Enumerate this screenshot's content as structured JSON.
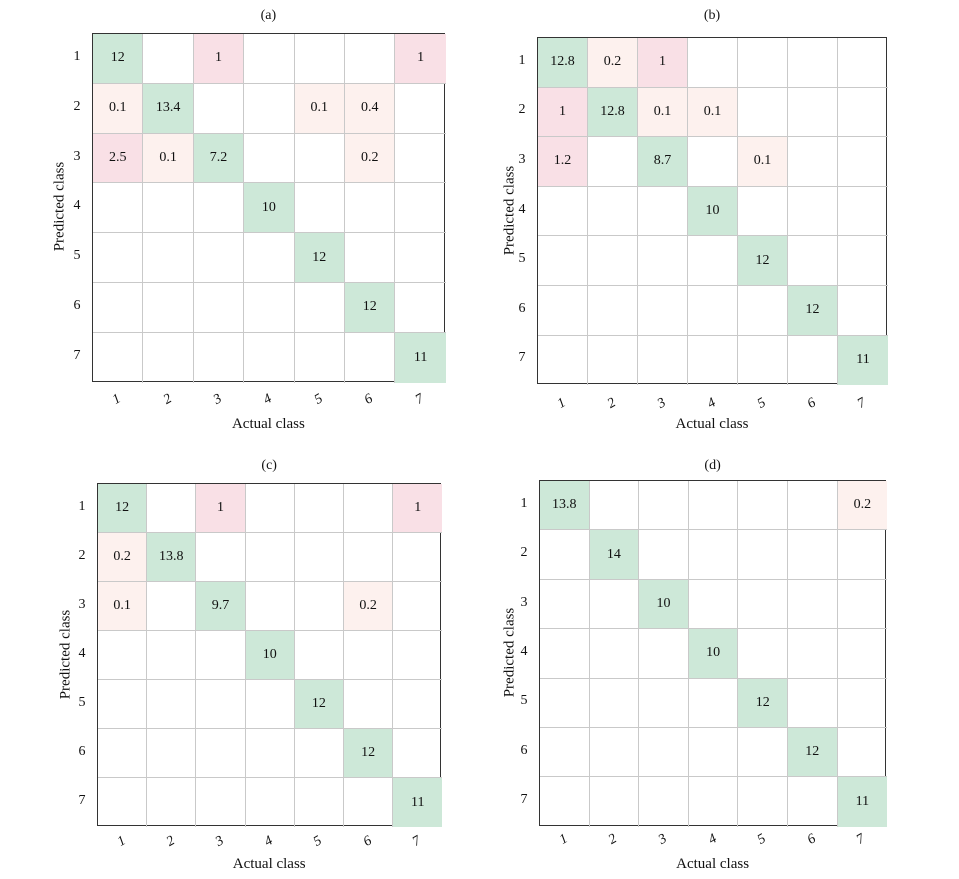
{
  "chart_data": [
    {
      "type": "heatmap",
      "title": "(a)",
      "xlabel": "Actual class",
      "ylabel": "Predicted class",
      "x_tick_labels": [
        "1",
        "2",
        "3",
        "4",
        "5",
        "6",
        "7"
      ],
      "y_tick_labels": [
        "1",
        "2",
        "3",
        "4",
        "5",
        "6",
        "7"
      ],
      "values": [
        [
          "12",
          "",
          "1",
          "",
          "",
          "",
          "1"
        ],
        [
          "0.1",
          "13.4",
          "",
          "",
          "0.1",
          "0.4",
          ""
        ],
        [
          "2.5",
          "0.1",
          "7.2",
          "",
          "",
          "0.2",
          ""
        ],
        [
          "",
          "",
          "",
          "10",
          "",
          "",
          ""
        ],
        [
          "",
          "",
          "",
          "",
          "12",
          "",
          ""
        ],
        [
          "",
          "",
          "",
          "",
          "",
          "12",
          ""
        ],
        [
          "",
          "",
          "",
          "",
          "",
          "",
          "11"
        ]
      ]
    },
    {
      "type": "heatmap",
      "title": "(b)",
      "xlabel": "Actual class",
      "ylabel": "Predicted class",
      "x_tick_labels": [
        "1",
        "2",
        "3",
        "4",
        "5",
        "6",
        "7"
      ],
      "y_tick_labels": [
        "1",
        "2",
        "3",
        "4",
        "5",
        "6",
        "7"
      ],
      "values": [
        [
          "12.8",
          "0.2",
          "1",
          "",
          "",
          "",
          ""
        ],
        [
          "1",
          "12.8",
          "0.1",
          "0.1",
          "",
          "",
          ""
        ],
        [
          "1.2",
          "",
          "8.7",
          "",
          "0.1",
          "",
          ""
        ],
        [
          "",
          "",
          "",
          "10",
          "",
          "",
          ""
        ],
        [
          "",
          "",
          "",
          "",
          "12",
          "",
          ""
        ],
        [
          "",
          "",
          "",
          "",
          "",
          "12",
          ""
        ],
        [
          "",
          "",
          "",
          "",
          "",
          "",
          "11"
        ]
      ]
    },
    {
      "type": "heatmap",
      "title": "(c)",
      "xlabel": "Actual class",
      "ylabel": "Predicted class",
      "x_tick_labels": [
        "1",
        "2",
        "3",
        "4",
        "5",
        "6",
        "7"
      ],
      "y_tick_labels": [
        "1",
        "2",
        "3",
        "4",
        "5",
        "6",
        "7"
      ],
      "values": [
        [
          "12",
          "",
          "1",
          "",
          "",
          "",
          "1"
        ],
        [
          "0.2",
          "13.8",
          "",
          "",
          "",
          "",
          ""
        ],
        [
          "0.1",
          "",
          "9.7",
          "",
          "",
          "0.2",
          ""
        ],
        [
          "",
          "",
          "",
          "10",
          "",
          "",
          ""
        ],
        [
          "",
          "",
          "",
          "",
          "12",
          "",
          ""
        ],
        [
          "",
          "",
          "",
          "",
          "",
          "12",
          ""
        ],
        [
          "",
          "",
          "",
          "",
          "",
          "",
          "11"
        ]
      ]
    },
    {
      "type": "heatmap",
      "title": "(d)",
      "xlabel": "Actual class",
      "ylabel": "Predicted class",
      "x_tick_labels": [
        "1",
        "2",
        "3",
        "4",
        "5",
        "6",
        "7"
      ],
      "y_tick_labels": [
        "1",
        "2",
        "3",
        "4",
        "5",
        "6",
        "7"
      ],
      "values": [
        [
          "13.8",
          "",
          "",
          "",
          "",
          "",
          "0.2"
        ],
        [
          "",
          "14",
          "",
          "",
          "",
          "",
          ""
        ],
        [
          "",
          "",
          "10",
          "",
          "",
          "",
          ""
        ],
        [
          "",
          "",
          "",
          "10",
          "",
          "",
          ""
        ],
        [
          "",
          "",
          "",
          "",
          "12",
          "",
          ""
        ],
        [
          "",
          "",
          "",
          "",
          "",
          "12",
          ""
        ],
        [
          "",
          "",
          "",
          "",
          "",
          "",
          "11"
        ]
      ]
    }
  ],
  "colors": {
    "diagonal": "#cde8d8",
    "off_diagonal_strong": "#f9e0e6",
    "off_diagonal_weak": "#fdf1ee"
  }
}
